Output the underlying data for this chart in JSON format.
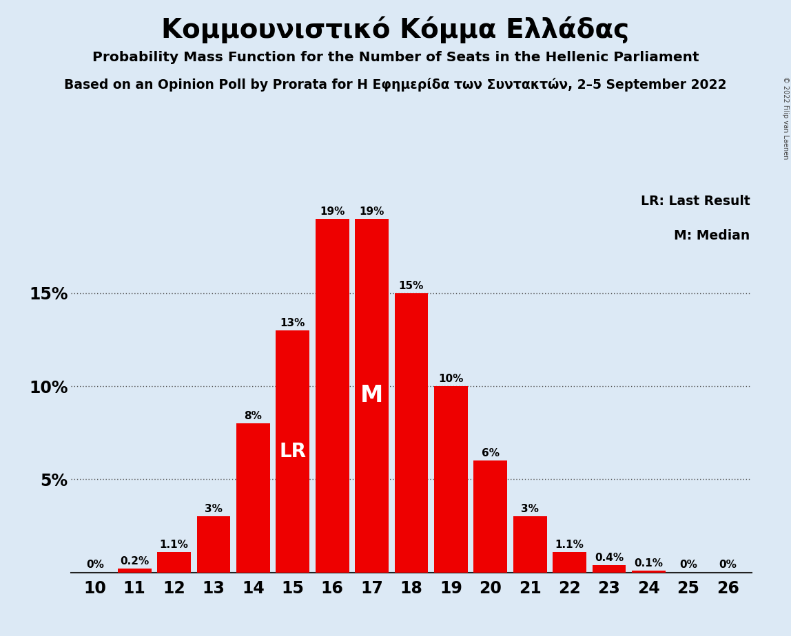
{
  "title": "Κομμουνιστικό Κόμμα Ελλάδας",
  "subtitle1": "Probability Mass Function for the Number of Seats in the Hellenic Parliament",
  "subtitle2": "Based on an Opinion Poll by Prorata for Η Εφημερίδα των Συντακτών, 2–5 September 2022",
  "copyright": "© 2022 Filip van Laenen",
  "seats": [
    10,
    11,
    12,
    13,
    14,
    15,
    16,
    17,
    18,
    19,
    20,
    21,
    22,
    23,
    24,
    25,
    26
  ],
  "probabilities": [
    0.0,
    0.2,
    1.1,
    3.0,
    8.0,
    13.0,
    19.0,
    19.0,
    15.0,
    10.0,
    6.0,
    3.0,
    1.1,
    0.4,
    0.1,
    0.0,
    0.0
  ],
  "bar_color": "#ee0000",
  "background_color": "#dce9f5",
  "lr_seat": 15,
  "median_seat": 17,
  "lr_label": "LR",
  "median_label": "M",
  "legend_lr": "LR: Last Result",
  "legend_m": "M: Median",
  "yticks": [
    5,
    10,
    15
  ],
  "ylim": [
    0,
    20.5
  ],
  "bar_labels": [
    "0%",
    "0.2%",
    "1.1%",
    "3%",
    "8%",
    "13%",
    "19%",
    "19%",
    "15%",
    "10%",
    "6%",
    "3%",
    "1.1%",
    "0.4%",
    "0.1%",
    "0%",
    "0%"
  ]
}
